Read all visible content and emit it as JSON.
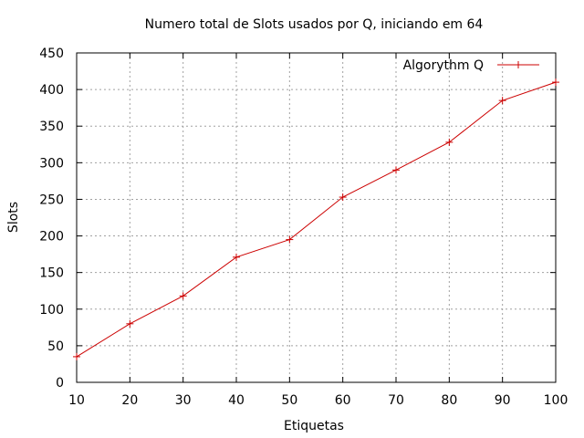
{
  "chart_data": {
    "type": "line",
    "title": "Numero total de Slots usados por Q, iniciando em 64",
    "xlabel": "Etiquetas",
    "ylabel": "Slots",
    "x": [
      10,
      20,
      30,
      40,
      50,
      60,
      70,
      80,
      90,
      100
    ],
    "xlim": [
      10,
      100
    ],
    "ylim": [
      0,
      450
    ],
    "xticks": [
      10,
      20,
      30,
      40,
      50,
      60,
      70,
      80,
      90,
      100
    ],
    "yticks": [
      0,
      50,
      100,
      150,
      200,
      250,
      300,
      350,
      400,
      450
    ],
    "grid": true,
    "legend_position": "top-right",
    "series": [
      {
        "name": "Algorythm Q",
        "color": "#cc0000",
        "marker": "plus",
        "values": [
          35,
          80,
          118,
          171,
          195,
          253,
          290,
          328,
          385,
          410
        ]
      }
    ]
  }
}
